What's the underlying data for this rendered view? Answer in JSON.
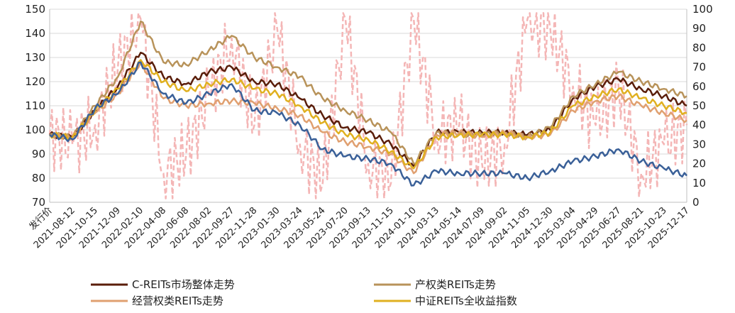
{
  "chart_data": {
    "type": "line",
    "title": "",
    "xlabel": "",
    "ylabel": "",
    "ylim_left": [
      70,
      150
    ],
    "yticks_left": [
      70,
      80,
      90,
      100,
      110,
      120,
      130,
      140,
      150
    ],
    "ylim_right": [
      0,
      100
    ],
    "yticks_right": [
      0,
      10,
      20,
      30,
      40,
      50,
      60,
      70,
      80,
      90,
      100
    ],
    "grid": "horizontal",
    "legend_position": "bottom",
    "categories": [
      "发行价",
      "2021-08-12",
      "2021-10-15",
      "2021-12-09",
      "2022-02-10",
      "2022-04-08",
      "2022-06-08",
      "2022-08-02",
      "2022-09-27",
      "2022-11-28",
      "2023-01-30",
      "2023-03-24",
      "2023-05-24",
      "2023-07-20",
      "2023-09-13",
      "2023-11-15",
      "2024-01-10",
      "2024-03-13",
      "2024-05-14",
      "2024-07-09",
      "2024-09-02",
      "2024-11-05",
      "2024-12-30",
      "2025-03-04",
      "2025-04-29",
      "2025-06-27",
      "2025-08-21",
      "2025-10-23",
      "2025-12-17"
    ],
    "series": [
      {
        "name": "C-REITs市场整体走势",
        "axis": "left",
        "color": "#5a1e0a",
        "dash": "",
        "values": [
          98,
          97,
          108,
          118,
          132,
          122,
          119,
          124,
          126,
          120,
          119,
          113,
          106,
          101,
          99,
          94,
          85,
          99,
          99,
          99,
          99,
          98,
          100,
          113,
          118,
          121,
          117,
          114,
          110
        ]
      },
      {
        "name": "产权类REITs走势",
        "axis": "left",
        "color": "#b8935a",
        "dash": "",
        "values": [
          98,
          97,
          110,
          122,
          145,
          128,
          127,
          133,
          139,
          130,
          126,
          122,
          113,
          108,
          104,
          99,
          86,
          99,
          98,
          98,
          99,
          97,
          101,
          114,
          119,
          124,
          120,
          117,
          114
        ]
      },
      {
        "name": "经营权类REITs走势",
        "axis": "left",
        "color": "#e0a070",
        "dash": "",
        "values": [
          98,
          97,
          107,
          115,
          128,
          113,
          110,
          111,
          112,
          111,
          109,
          106,
          99,
          95,
          93,
          90,
          82,
          98,
          99,
          97,
          99,
          97,
          98,
          108,
          112,
          114,
          110,
          107,
          104
        ]
      },
      {
        "name": "中证REITs全收益指数",
        "axis": "left",
        "color": "#e0b020",
        "dash": "",
        "values": [
          98,
          97,
          108,
          117,
          129,
          120,
          116,
          119,
          121,
          117,
          115,
          110,
          103,
          98,
          96,
          91,
          84,
          97,
          98,
          98,
          98,
          97,
          99,
          110,
          114,
          117,
          113,
          110,
          107
        ]
      },
      {
        "name": "",
        "axis": "left",
        "color": "#3a6098",
        "dash": "",
        "values": [
          98,
          96,
          109,
          115,
          128,
          115,
          111,
          115,
          119,
          108,
          107,
          102,
          92,
          89,
          88,
          86,
          77,
          83,
          82,
          82,
          82,
          80,
          83,
          87,
          89,
          92,
          87,
          84,
          81
        ]
      },
      {
        "name": "",
        "axis": "right",
        "color": "#f4b6b6",
        "dash": "7,4",
        "values": [
          35,
          30,
          40,
          70,
          95,
          15,
          25,
          55,
          85,
          40,
          90,
          30,
          10,
          95,
          20,
          10,
          95,
          35,
          40,
          20,
          30,
          95,
          90,
          60,
          40,
          60,
          15,
          30,
          40
        ]
      }
    ]
  },
  "legend": [
    {
      "label": "C-REITs市场整体走势",
      "color": "#5a1e0a"
    },
    {
      "label": "产权类REITs走势",
      "color": "#b8935a"
    },
    {
      "label": "经营权类REITs走势",
      "color": "#e0a070"
    },
    {
      "label": "中证REITs全收益指数",
      "color": "#e0b020"
    }
  ]
}
